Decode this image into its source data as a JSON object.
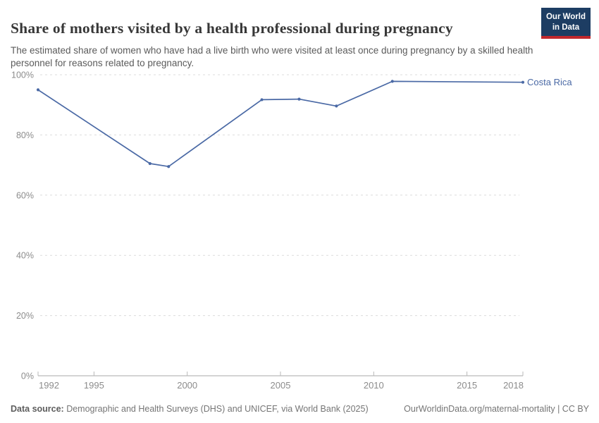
{
  "header": {
    "title": "Share of mothers visited by a health professional during pregnancy",
    "subtitle": "The estimated share of women who have had a live birth who were visited at least once during pregnancy by a skilled health personnel for reasons related to pregnancy.",
    "logo": {
      "line1": "Our World",
      "line2": "in Data"
    }
  },
  "chart_data": {
    "type": "line",
    "title": "Share of mothers visited by a health professional during pregnancy",
    "xlabel": "",
    "ylabel": "",
    "xlim": [
      1992,
      2018
    ],
    "ylim": [
      0,
      100
    ],
    "x_ticks": [
      1992,
      1995,
      2000,
      2005,
      2010,
      2015,
      2018
    ],
    "y_ticks": [
      0,
      20,
      40,
      60,
      80,
      100
    ],
    "y_tick_suffix": "%",
    "grid": "dashed-horizontal",
    "legend_position": "end-of-line-label",
    "entity_label": "Costa Rica",
    "series": [
      {
        "name": "Costa Rica",
        "color": "#4a69a5",
        "x": [
          1992,
          1998,
          1999,
          2004,
          2006,
          2008,
          2011,
          2018
        ],
        "values": [
          95,
          70.5,
          69.5,
          91.7,
          91.9,
          89.6,
          97.8,
          97.5
        ]
      }
    ]
  },
  "footer": {
    "datasource_label": "Data source:",
    "datasource_text": " Demographic and Health Surveys (DHS) and UNICEF, via World Bank (2025)",
    "rights": "OurWorldinData.org/maternal-mortality | CC BY"
  },
  "colors": {
    "accent_line": "#4a69a5",
    "logo_bg": "#1d3d63",
    "logo_accent": "#c0282d",
    "gridline": "#dcdcdc",
    "axis_line": "#a9a9a9",
    "tick_mark": "#b8b8b8",
    "axis_text": "#8c8c8c",
    "title_text": "#373737",
    "subtitle_text": "#5b5b5b"
  }
}
